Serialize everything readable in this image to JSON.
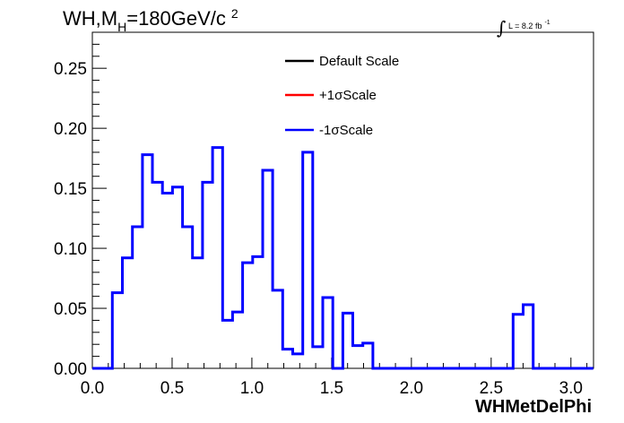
{
  "chart_data": {
    "type": "histogram",
    "title": {
      "prefix": "WH,M",
      "subscript": "H",
      "value": "=180GeV/c",
      "superscript": "2"
    },
    "lumi": {
      "integral": "∫",
      "text": "L = 8.2 fb",
      "superscript": "-1"
    },
    "xlabel": "WHMetDelPhi",
    "ylabel": "",
    "xlim": [
      0.0,
      3.1416
    ],
    "ylim": [
      0.0,
      0.28
    ],
    "xticks": [
      "0.0",
      "0.5",
      "1.0",
      "1.5",
      "2.0",
      "2.5",
      "3.0"
    ],
    "yticks": [
      "0.00",
      "0.05",
      "0.10",
      "0.15",
      "0.20",
      "0.25"
    ],
    "bin_width": 0.0628,
    "bin_start": 0.0,
    "legend": [
      {
        "name": "Default Scale",
        "color": "#000000"
      },
      {
        "name": "+1σScale",
        "color": "#ff0000"
      },
      {
        "name": "-1σScale",
        "color": "#0000ff"
      }
    ],
    "series": [
      {
        "name": "-1σScale",
        "color": "#0000ff",
        "values": [
          0.0,
          0.0,
          0.063,
          0.092,
          0.118,
          0.178,
          0.155,
          0.146,
          0.151,
          0.118,
          0.092,
          0.155,
          0.184,
          0.04,
          0.047,
          0.088,
          0.093,
          0.165,
          0.065,
          0.016,
          0.012,
          0.18,
          0.018,
          0.059,
          0.0,
          0.046,
          0.019,
          0.021,
          0,
          0,
          0,
          0,
          0,
          0,
          0,
          0,
          0,
          0,
          0,
          0,
          0,
          0,
          0.045,
          0.053,
          0,
          0,
          0,
          0,
          0,
          0
        ]
      }
    ]
  }
}
